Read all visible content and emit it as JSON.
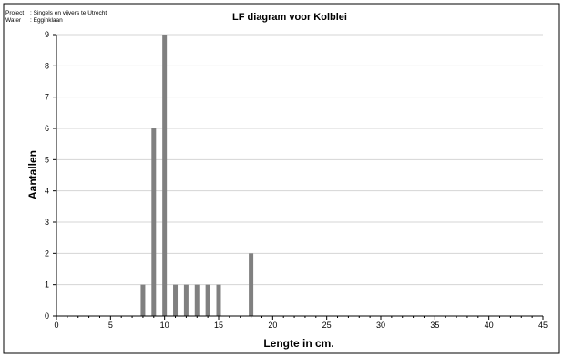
{
  "header": {
    "project_label": "Project",
    "project_value": ": Singels en vijvers te Utrecht",
    "water_label": "Water",
    "water_value": ": Egginklaan"
  },
  "chart_data": {
    "type": "bar",
    "title": "LF diagram voor Kolblei",
    "xlabel": "Lengte in cm.",
    "ylabel": "Aantallen",
    "xlim": [
      0,
      45
    ],
    "ylim": [
      0,
      9
    ],
    "xticks": [
      0,
      5,
      10,
      15,
      20,
      25,
      30,
      35,
      40,
      45
    ],
    "yticks": [
      0,
      1,
      2,
      3,
      4,
      5,
      6,
      7,
      8,
      9
    ],
    "grid": "horizontal",
    "bar_color": "#808080",
    "x": [
      8,
      9,
      10,
      11,
      12,
      13,
      14,
      15,
      18
    ],
    "values": [
      1,
      6,
      9,
      1,
      1,
      1,
      1,
      1,
      2
    ]
  }
}
